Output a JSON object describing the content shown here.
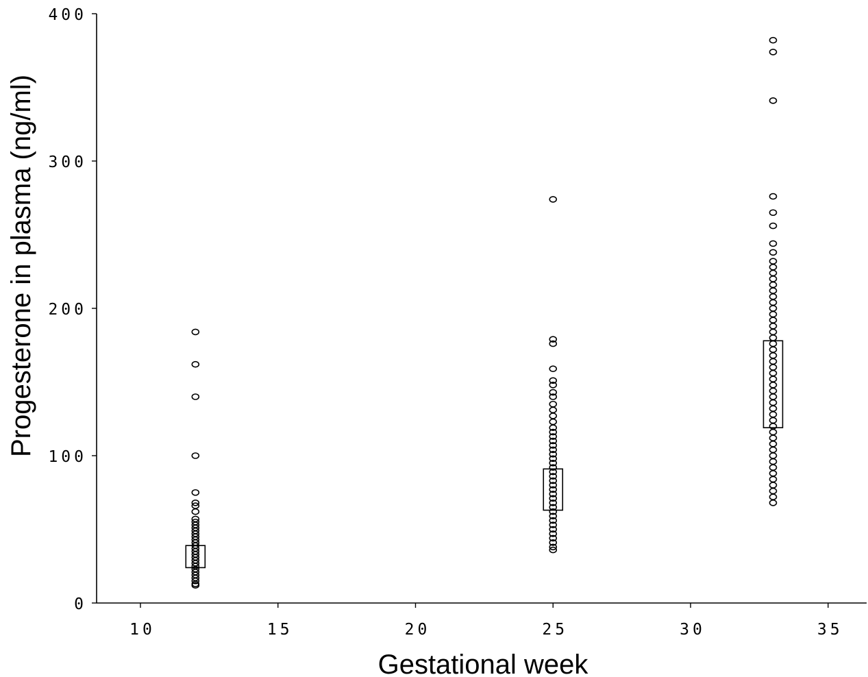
{
  "chart_data": {
    "type": "scatter",
    "title": "",
    "xlabel": "Gestational week",
    "ylabel": "Progesterone in plasma (ng/ml)",
    "xlim": [
      8.4,
      36.4
    ],
    "ylim": [
      0,
      400
    ],
    "x_ticks": [
      "10",
      "15",
      "20",
      "25",
      "30",
      "35"
    ],
    "y_ticks": [
      "0",
      "100",
      "200",
      "300",
      "400"
    ],
    "grid": false,
    "legend": "none",
    "boxes": [
      {
        "x": 12,
        "q1": 24,
        "q3": 39
      },
      {
        "x": 25,
        "q1": 63,
        "q3": 91
      },
      {
        "x": 33,
        "q1": 119,
        "q3": 178
      }
    ],
    "series": [
      {
        "x": 12,
        "y": [
          184,
          162,
          140,
          100,
          75,
          68,
          66,
          62,
          57,
          55,
          53,
          51,
          49,
          47,
          45,
          43,
          41,
          39,
          37,
          35,
          33,
          31,
          29,
          27,
          25,
          23,
          21,
          19,
          17,
          15,
          13,
          12
        ]
      },
      {
        "x": 25,
        "y": [
          274,
          179,
          176,
          159,
          151,
          148,
          143,
          140,
          135,
          131,
          127,
          123,
          119,
          116,
          113,
          110,
          107,
          104,
          101,
          98,
          95,
          92,
          89,
          86,
          83,
          80,
          77,
          74,
          71,
          68,
          65,
          62,
          59,
          56,
          53,
          50,
          47,
          44,
          41,
          38,
          36
        ]
      },
      {
        "x": 33,
        "y": [
          382,
          374,
          341,
          276,
          265,
          256,
          244,
          238,
          232,
          228,
          224,
          220,
          216,
          212,
          208,
          204,
          200,
          196,
          192,
          188,
          184,
          180,
          176,
          172,
          168,
          164,
          160,
          156,
          152,
          148,
          144,
          140,
          136,
          132,
          128,
          124,
          120,
          116,
          112,
          108,
          104,
          100,
          96,
          92,
          88,
          84,
          80,
          76,
          72,
          68
        ]
      }
    ]
  }
}
